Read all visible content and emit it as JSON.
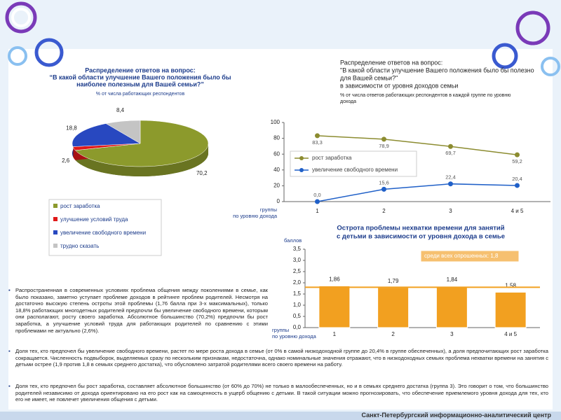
{
  "chart_data": [
    {
      "type": "pie",
      "title": [
        "Распределение ответов на вопрос:",
        "“В какой области улучшение Вашего положения было бы",
        "наиболее полезным для Вашей семьи?”"
      ],
      "subtitle": "% от числа работающих респондентов",
      "categories": [
        "рост заработка",
        "улучшение условий труда",
        "увеличение свободного времени",
        "трудно сказать"
      ],
      "values": [
        70.2,
        2.6,
        18.8,
        8.4
      ],
      "value_labels": [
        "70,2",
        "2,6",
        "18,8",
        "8,4"
      ],
      "colors": [
        "#8c9a2c",
        "#e01818",
        "#2848c0",
        "#c4c4c4"
      ]
    },
    {
      "type": "line",
      "title": [
        "Распределение ответов на вопрос:",
        "\"В какой области улучшение Вашего положения было бы полезно",
        "для Вашей семьи?\"",
        "в зависимости от уровня доходов семьи"
      ],
      "subtitle": [
        "% от числа ответов работающих респондентов в каждой группе по уровню",
        "дохода"
      ],
      "x_label": [
        "группы",
        "по уровню дохода"
      ],
      "categories": [
        "1",
        "2",
        "3",
        "4 и 5"
      ],
      "series": [
        {
          "name": "рост заработка",
          "color": "#8c8c30",
          "values": [
            83.3,
            78.9,
            69.7,
            59.2
          ],
          "value_labels": [
            "83,3",
            "78,9",
            "69,7",
            "59,2"
          ]
        },
        {
          "name": "увеличение свободного времени",
          "color": "#2060c8",
          "values": [
            0.0,
            15.6,
            22.4,
            20.4
          ],
          "value_labels": [
            "0,0",
            "15,6",
            "22,4",
            "20,4"
          ]
        }
      ],
      "ylim": [
        0,
        100
      ],
      "yticks": [
        0,
        20,
        40,
        60,
        80,
        100
      ]
    },
    {
      "type": "bar",
      "title": [
        "Острота проблемы нехватки времени для занятий",
        "с детьми в зависимости от уровня дохода в семье"
      ],
      "y_label": "баллов",
      "x_label": [
        "группы",
        "по уровню дохода"
      ],
      "categories": [
        "1",
        "2",
        "3",
        "4 и 5"
      ],
      "values": [
        1.86,
        1.79,
        1.84,
        1.58
      ],
      "value_labels": [
        "1,86",
        "1,79",
        "1,84",
        "1,58"
      ],
      "color": "#f2a020",
      "reference": {
        "value": 1.8,
        "label": "среди всех опрошенных: 1,8"
      },
      "ylim": [
        0,
        3.5
      ],
      "yticks": [
        {
          "value": 0,
          "label": "0,0"
        },
        {
          "value": 0.5,
          "label": "0,5"
        },
        {
          "value": 1,
          "label": "1,0"
        },
        {
          "value": 1.5,
          "label": "1,5"
        },
        {
          "value": 2,
          "label": "2,0"
        },
        {
          "value": 2.5,
          "label": "2,5"
        },
        {
          "value": 3,
          "label": "3,0"
        },
        {
          "value": 3.5,
          "label": "3,5"
        }
      ]
    }
  ],
  "bullets": [
    "Распространенная в современных условиях проблема общения между поколениями в семье, как было показано, заметно уступает проблеме доходов в рейтинге проблем родителей. Несмотря на достаточно высокую степень остроты этой проблемы (1,76 балла при 3-х максимальных), только 18,8% работающих многодетных родителей предпочли бы увеличение свободного времени, которым они располагают, росту своего заработка. Абсолютное большинство (70,2%) предпочли бы рост заработка, а улучшение условий труда для работающих родителей по сравнению с этими проблемами не актуально (2,6%).",
    "Доля тех, кто предпочел бы увеличение свободного времени, растет по мере роста дохода в семье (от 0% в самой низкодоходной группе до 20,4% в группе обеспеченных), а доля предпочитающих рост заработка сокращается. Численность подвыборок, выделяемых сразу по нескольким признакам, недостаточна, однако номинальные значения отражают, что в низкодоходных семьях проблема нехватки времени на занятия с детьми острее (1,9 против 1,8 в семьях среднего достатка), что обусловлено затратой родителями всего своего времени на работу.",
    "Доля тех, кто предпочел бы рост заработка, составляет абсолютное большинство (от 60% до 70%) не только в малообеспеченных, но и в семьях среднего достатка (группа 3). Это говорит о том, что большинство родителей независимо от дохода ориентировано на его рост как на самоценность в ущерб общению с детьми. В такой ситуации можно прогнозировать, что обеспечение приемлемого уровня дохода для тех, кто его не имеет, не повлечет увеличения общения с детьми."
  ],
  "footer": "Санкт-Петербургский информационно-аналитический центр"
}
